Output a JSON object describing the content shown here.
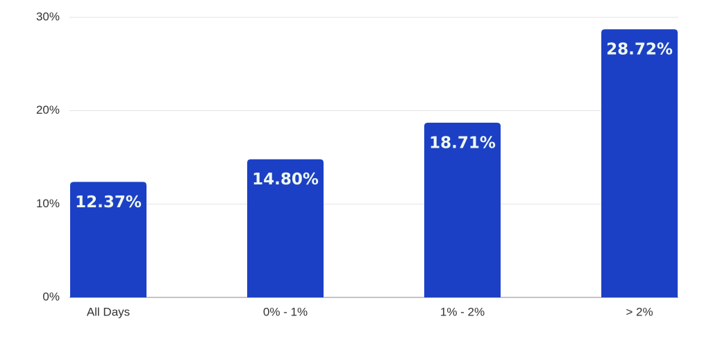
{
  "chart_data": {
    "type": "bar",
    "categories": [
      "All Days",
      "0% - 1%",
      "1% - 2%",
      "> 2%"
    ],
    "values": [
      12.37,
      14.8,
      18.71,
      28.72
    ],
    "value_labels": [
      "12.37%",
      "14.80%",
      "18.71%",
      "28.72%"
    ],
    "color": "#1c40c5",
    "ylim": [
      0,
      30
    ],
    "yticks": [
      {
        "value": 0,
        "label": "0%"
      },
      {
        "value": 10,
        "label": "10%"
      },
      {
        "value": 20,
        "label": "20%"
      },
      {
        "value": 30,
        "label": "30%"
      }
    ],
    "grid": true
  }
}
